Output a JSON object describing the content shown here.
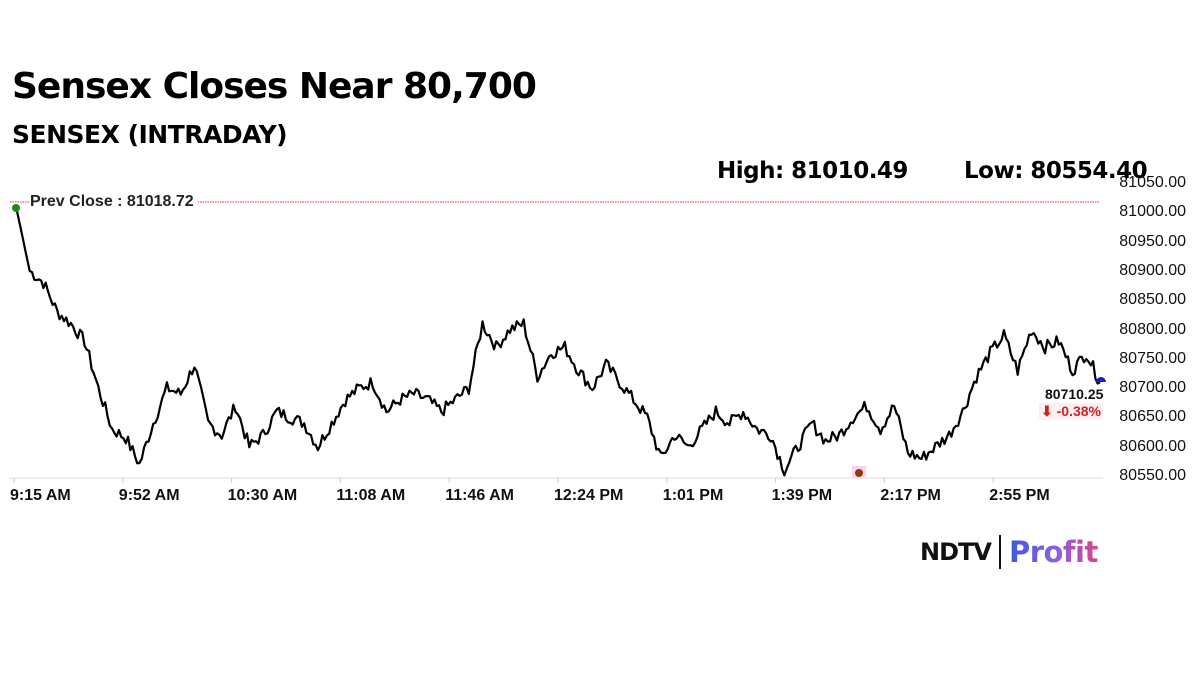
{
  "header": {
    "title": "Sensex Closes Near 80,700",
    "subtitle": "SENSEX (INTRADAY)"
  },
  "stats": {
    "high_label": "High: 81010.49",
    "low_label": "Low: 80554.40"
  },
  "annotations": {
    "prev_close": "Prev Close : 81018.72",
    "last_value": "80710.25",
    "last_change": "⬇ -0.38%"
  },
  "logo": {
    "brand": "NDTV",
    "product": "Profit"
  },
  "colors": {
    "line": "#000000",
    "prev_close_line": "#e0303a",
    "open_marker": "#1a8a1a",
    "low_marker": "#8b3a0a",
    "last_marker": "#1a1acc",
    "change_negative": "#cc2222"
  },
  "chart_data": {
    "type": "line",
    "title": "Sensex Closes Near 80,700",
    "subtitle": "SENSEX (INTRADAY)",
    "xlabel": "",
    "ylabel": "",
    "ylim": [
      80550,
      81050
    ],
    "yticks": [
      "81050.00",
      "81000.00",
      "80950.00",
      "80900.00",
      "80850.00",
      "80800.00",
      "80750.00",
      "80700.00",
      "80650.00",
      "80600.00",
      "80550.00"
    ],
    "xticks": [
      "9:15 AM",
      "9:52 AM",
      "10:30 AM",
      "11:08 AM",
      "11:46 AM",
      "12:24 PM",
      "1:01 PM",
      "1:39 PM",
      "2:17 PM",
      "2:55 PM"
    ],
    "grid": false,
    "legend": null,
    "reference_line": {
      "label": "Prev Close",
      "value": 81018.72
    },
    "high": 81010.49,
    "low": 80554.4,
    "last": 80710.25,
    "change_pct": -0.38,
    "series": [
      {
        "name": "SENSEX",
        "x": [
          "9:15 AM",
          "9:17 AM",
          "9:20 AM",
          "9:25 AM",
          "9:30 AM",
          "9:35 AM",
          "9:40 AM",
          "9:45 AM",
          "9:50 AM",
          "9:52 AM",
          "9:55 AM",
          "10:00 AM",
          "10:05 AM",
          "10:10 AM",
          "10:15 AM",
          "10:20 AM",
          "10:25 AM",
          "10:30 AM",
          "10:35 AM",
          "10:40 AM",
          "10:45 AM",
          "10:50 AM",
          "10:55 AM",
          "11:00 AM",
          "11:05 AM",
          "11:08 AM",
          "11:12 AM",
          "11:18 AM",
          "11:22 AM",
          "11:28 AM",
          "11:35 AM",
          "11:40 AM",
          "11:46 AM",
          "11:52 AM",
          "11:58 AM",
          "12:02 PM",
          "12:08 PM",
          "12:14 PM",
          "12:18 PM",
          "12:24 PM",
          "12:28 PM",
          "12:33 PM",
          "12:38 PM",
          "12:43 PM",
          "12:48 PM",
          "12:53 PM",
          "12:58 PM",
          "1:01 PM",
          "1:05 PM",
          "1:10 PM",
          "1:15 PM",
          "1:20 PM",
          "1:25 PM",
          "1:30 PM",
          "1:35 PM",
          "1:39 PM",
          "1:43 PM",
          "1:47 PM",
          "1:52 PM",
          "1:56 PM",
          "2:00 PM",
          "2:05 PM",
          "2:10 PM",
          "2:17 PM",
          "2:22 PM",
          "2:27 PM",
          "2:32 PM",
          "2:37 PM",
          "2:42 PM",
          "2:47 PM",
          "2:52 PM",
          "2:55 PM",
          "2:58 PM",
          "3:02 PM",
          "3:06 PM",
          "3:10 PM",
          "3:15 PM",
          "3:20 PM",
          "3:25 PM",
          "3:29 PM"
        ],
        "values": [
          81010,
          80900,
          80880,
          80830,
          80810,
          80780,
          80700,
          80630,
          80615,
          80570,
          80640,
          80700,
          80690,
          80740,
          80640,
          80620,
          80670,
          80600,
          80620,
          80660,
          80650,
          80640,
          80600,
          80640,
          80680,
          80700,
          80710,
          80660,
          80680,
          80690,
          80680,
          80660,
          80680,
          80700,
          80810,
          80770,
          80800,
          80810,
          80720,
          80760,
          80770,
          80730,
          80700,
          80740,
          80710,
          80680,
          80650,
          80580,
          80620,
          80600,
          80630,
          80660,
          80640,
          80660,
          80630,
          80620,
          80560,
          80600,
          80640,
          80610,
          80620,
          80650,
          80670,
          80630,
          80670,
          80590,
          80580,
          80600,
          80620,
          80660,
          80720,
          80760,
          80790,
          80730,
          80800,
          80770,
          80780,
          80730,
          80760,
          80710
        ]
      }
    ]
  }
}
